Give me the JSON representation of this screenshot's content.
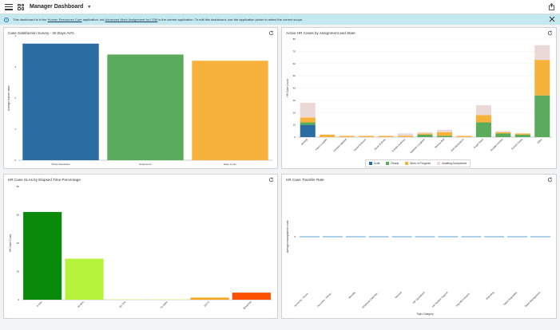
{
  "app": {
    "title": "Manager Dashboard"
  },
  "banner": {
    "text_1": "This dashboard is in the ",
    "link_1": "Human Resources Core",
    "text_2": " application, but ",
    "link_2": "Advanced Work Assignment for CSM",
    "text_3": " is the current application. To edit this dashboard, use the application picker to select the correct scope.",
    "info_icon": "i"
  },
  "colors": {
    "blue": "#2b6ca3",
    "green": "#5aab5c",
    "orange": "#f7b23b",
    "pale": "#ebd9d7",
    "darkgreen": "#0a8a0a",
    "lime": "#b5f23c",
    "paleyellow": "#f4f7b3",
    "amber": "#f5a623",
    "red": "#fa5000",
    "flat": "#92bfe0"
  },
  "panels": {
    "survey": {
      "title": "Case Satisfaction Survey - 30 Days AVG.",
      "chart_data": {
        "type": "bar",
        "title": "Case Satisfaction Survey - 30 Days AVG.",
        "ylabel": "Average Answer value",
        "categories": [
          "Timely Resolution",
          "Experience",
          "Ease of use"
        ],
        "values": [
          3.75,
          3.4,
          3.2
        ],
        "ylim": [
          0,
          4
        ],
        "yticks": [
          "0",
          "1",
          "2",
          "3",
          "4"
        ],
        "colors": [
          "#2b6ca3",
          "#5aab5c",
          "#f7b23b"
        ]
      }
    },
    "active": {
      "title": "Active HR Cases by Assignment and State",
      "chart_data": {
        "type": "bar",
        "stacked": true,
        "title": "Active HR Cases by Assignment and State",
        "ylabel": "HR Case Count",
        "categories": [
          "(empty)",
          "Hana Loughlin",
          "Christen Mitchell",
          "Daniel Eriksson",
          "Jason Roberts",
          "Kendra Andrews",
          "Malcolm Loughton",
          "Monica Bell",
          "Rob Richardson",
          "Roger Nash",
          "Rosalie Herbert",
          "Suresh Gupta",
          "Other"
        ],
        "series": [
          {
            "name": "Draft",
            "color": "#2b6ca3",
            "values": [
              10,
              0,
              0,
              0,
              0,
              0,
              0,
              0,
              0,
              0,
              0,
              0,
              0
            ]
          },
          {
            "name": "Ready",
            "color": "#5aab5c",
            "values": [
              2,
              0,
              0,
              0,
              0,
              0,
              2,
              1,
              0,
              12,
              3,
              2,
              34
            ]
          },
          {
            "name": "Work in Progress",
            "color": "#f7b23b",
            "values": [
              4,
              2,
              1,
              1,
              1,
              1,
              1,
              3,
              1,
              6,
              1,
              1,
              29
            ]
          },
          {
            "name": "Awaiting Acceptance",
            "color": "#ebd9d7",
            "values": [
              12,
              0,
              0,
              0,
              0,
              2,
              1,
              2,
              0,
              8,
              1,
              0,
              12
            ]
          }
        ],
        "ylim": [
          0,
          80
        ],
        "yticks": [
          "0",
          "10",
          "20",
          "30",
          "40",
          "50",
          "60",
          "70",
          "80"
        ],
        "legend": "bottom"
      }
    },
    "sla": {
      "title": "HR Case SLAs by Elapsed Time Percentage",
      "chart_data": {
        "type": "bar",
        "title": "HR Case SLAs by Elapsed Time Percentage",
        "ylabel": "HR Case Count",
        "categories": [
          "0-25%",
          "25-50%",
          "50-75%",
          "75-100%",
          "100-%",
          "Breached"
        ],
        "values": [
          62,
          29,
          0.5,
          0.5,
          1.5,
          5
        ],
        "ylim": [
          0,
          80
        ],
        "yticks": [
          "0",
          "20",
          "40",
          "60",
          "80"
        ],
        "colors": [
          "#0a8a0a",
          "#b5f23c",
          "#f4f7b3",
          "#f4f7b3",
          "#f5a623",
          "#fa5000"
        ]
      }
    },
    "transfer": {
      "title": "HR Case Transfer Rate",
      "chart_data": {
        "type": "line",
        "title": "HR Case Transfer Rate",
        "xlabel": "Topic Category",
        "ylabel": "Average reassignment count",
        "categories": [
          "Accounts - Acces...",
          "Accounts - Servic...",
          "Benefits",
          "Employee Data Ma...",
          "General",
          "HR Operations",
          "HR System Support",
          "Payroll/Compens...",
          "Reporting",
          "Talent Acquisition",
          "Talent Management"
        ],
        "values": [
          0,
          0,
          0,
          0,
          0,
          0,
          0,
          0,
          0,
          0,
          0
        ],
        "yticks": [
          "0"
        ]
      }
    }
  }
}
